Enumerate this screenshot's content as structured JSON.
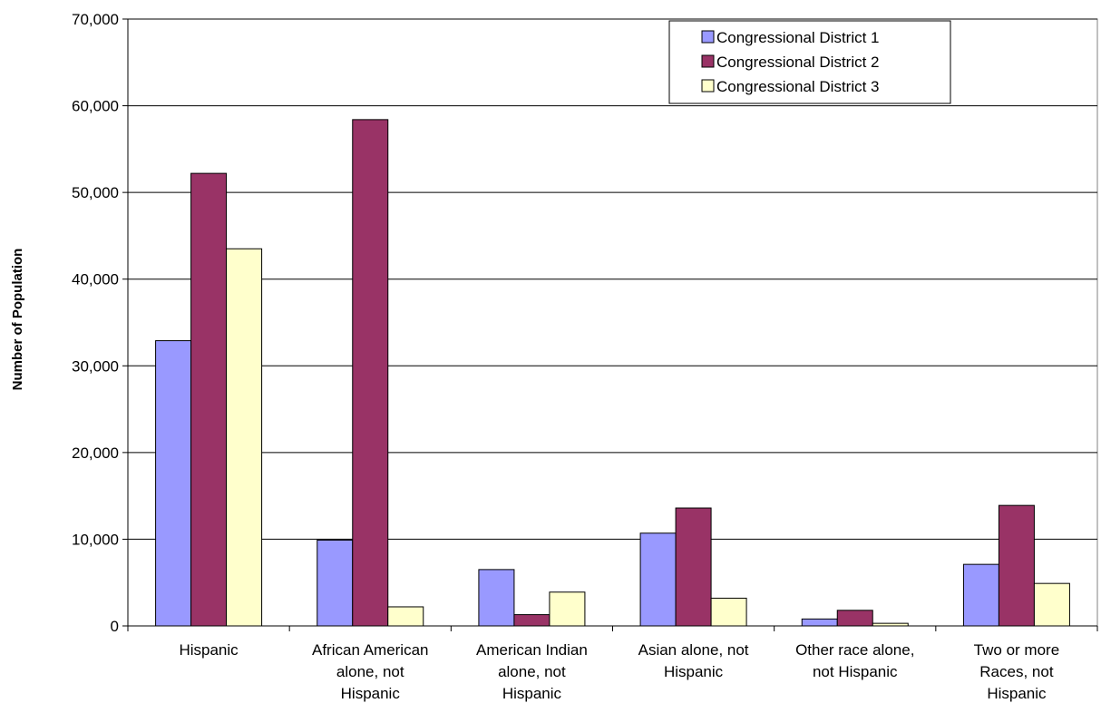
{
  "chart_data": {
    "type": "bar",
    "title": "",
    "xlabel": "",
    "ylabel": "Number of Population",
    "ylim": [
      0,
      70000
    ],
    "yticks": [
      "0",
      "10,000",
      "20,000",
      "30,000",
      "40,000",
      "50,000",
      "60,000",
      "70,000"
    ],
    "grid": true,
    "legend_position": "top-right",
    "categories": [
      [
        "Hispanic"
      ],
      [
        "African American",
        "alone, not",
        "Hispanic"
      ],
      [
        "American Indian",
        "alone, not",
        "Hispanic"
      ],
      [
        "Asian alone, not",
        "Hispanic"
      ],
      [
        "Other race alone,",
        "not Hispanic"
      ],
      [
        "Two or more",
        "Races, not",
        "Hispanic"
      ]
    ],
    "series": [
      {
        "name": "Congressional District 1",
        "color": "#9999ff",
        "values": [
          32900,
          9900,
          6500,
          10700,
          800,
          7100
        ]
      },
      {
        "name": "Congressional District 2",
        "color": "#993366",
        "values": [
          52200,
          58400,
          1300,
          13600,
          1800,
          13900
        ]
      },
      {
        "name": "Congressional District 3",
        "color": "#ffffcc",
        "values": [
          43500,
          2200,
          3900,
          3200,
          300,
          4900
        ]
      }
    ]
  }
}
